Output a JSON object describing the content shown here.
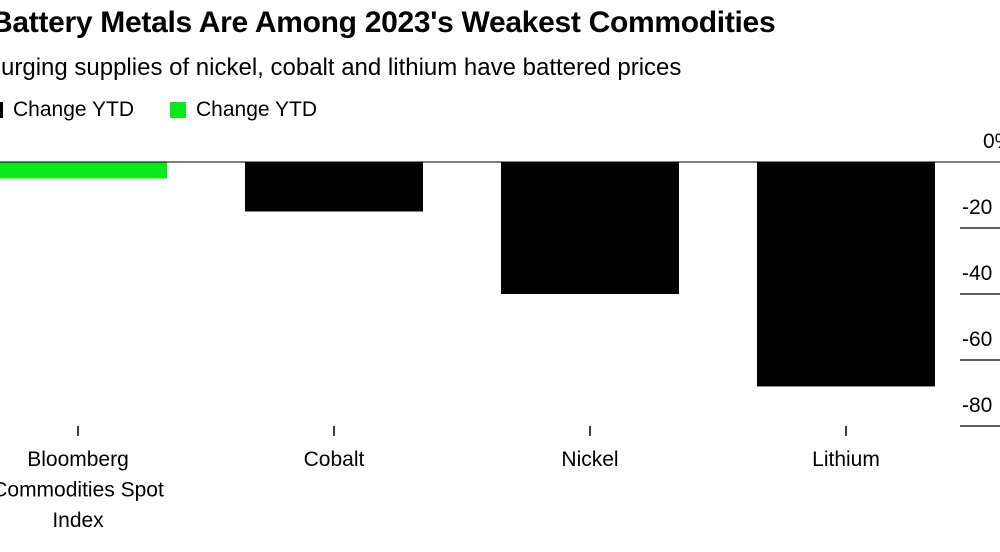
{
  "chart_data": {
    "type": "bar",
    "title": "Battery Metals Are Among 2023's Weakest Commodities",
    "subtitle": "Surging supplies of nickel, cobalt and lithium have battered prices",
    "legend": [
      {
        "name": "Change YTD",
        "color": "#000000"
      },
      {
        "name": "Change YTD",
        "color": "#0ce81e"
      }
    ],
    "legend_placement": "top-left",
    "categories": [
      "Bloomberg Commodities Spot Index",
      "Cobalt",
      "Nickel",
      "Lithium"
    ],
    "category_label_lines": [
      [
        "Bloomberg",
        "Commodities Spot",
        "Index"
      ],
      [
        "Cobalt"
      ],
      [
        "Nickel"
      ],
      [
        "Lithium"
      ]
    ],
    "values": [
      -5,
      -15,
      -40,
      -68
    ],
    "bar_colors": [
      "#0ce81e",
      "#000000",
      "#000000",
      "#000000"
    ],
    "ylim": [
      -80,
      0
    ],
    "yticks": [
      0,
      -20,
      -40,
      -60,
      -80
    ],
    "ytick_labels": [
      "0%",
      "-20",
      "-40",
      "-60",
      "-80"
    ],
    "y_axis_side": "right",
    "grid": false
  }
}
